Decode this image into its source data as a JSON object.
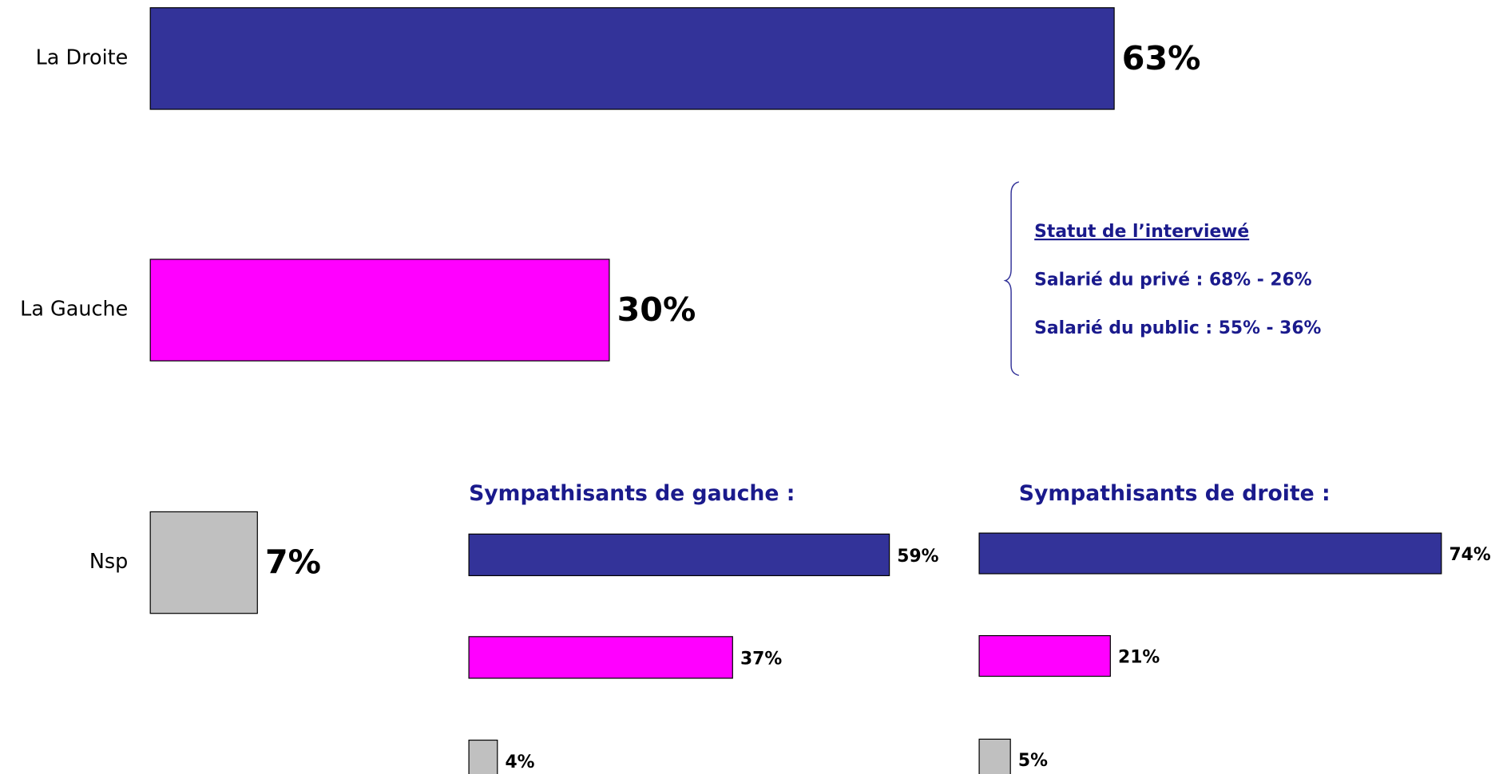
{
  "chart_data": [
    {
      "type": "bar",
      "categories": [
        "La Droite",
        "La Gauche",
        "Nsp"
      ],
      "values": [
        63,
        30,
        7
      ],
      "value_labels": [
        "63%",
        "30%",
        "7%"
      ],
      "colors": [
        "#333399",
        "#ff00ff",
        "#c0c0c0"
      ]
    },
    {
      "type": "bar",
      "title": "Sympathisants de gauche :",
      "categories": [
        null,
        null,
        null
      ],
      "values": [
        59,
        37,
        4
      ],
      "value_labels": [
        "59%",
        "37%",
        "4%"
      ],
      "colors": [
        "#333399",
        "#ff00ff",
        "#c0c0c0"
      ]
    },
    {
      "type": "bar",
      "title": "Sympathisants de droite :",
      "categories": [
        null,
        null,
        null
      ],
      "values": [
        74,
        21,
        5
      ],
      "value_labels": [
        "74%",
        "21%",
        "5%"
      ],
      "colors": [
        "#333399",
        "#ff00ff",
        "#c0c0c0"
      ]
    }
  ],
  "annotation": {
    "title": "Statut de l’interviewé",
    "lines": [
      "Salarié du privé : 68% - 26%",
      "Salarié du public : 55% - 36%"
    ]
  }
}
